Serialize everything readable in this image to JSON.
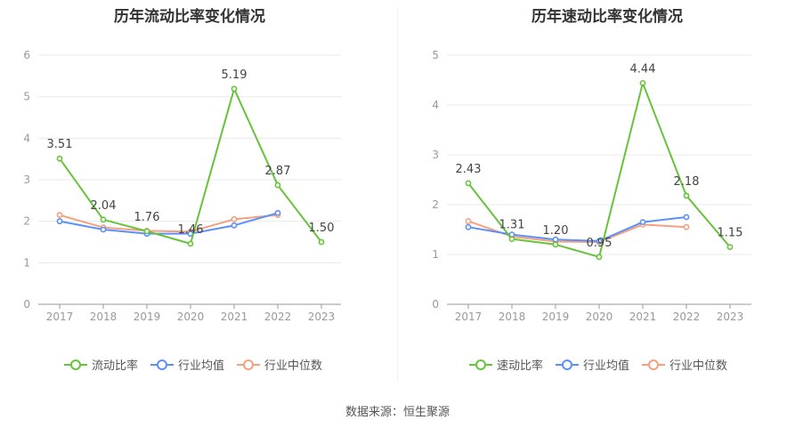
{
  "source": "数据来源：恒生聚源",
  "colors": {
    "main": "#66c33a",
    "avg": "#5b8ff9",
    "median": "#f4a07f",
    "grid": "#e9e9e9",
    "axis": "#999999",
    "tick": "#999999"
  },
  "chart_data": [
    {
      "type": "line",
      "title": "历年流动比率变化情况",
      "categories": [
        "2017",
        "2018",
        "2019",
        "2020",
        "2021",
        "2022",
        "2023"
      ],
      "ylim": [
        0,
        6
      ],
      "yticks": [
        "0",
        "1",
        "2",
        "3",
        "4",
        "5",
        "6"
      ],
      "legend_position": "bottom",
      "series": [
        {
          "name": "流动比率",
          "values": [
            3.51,
            2.04,
            1.76,
            1.46,
            5.19,
            2.87,
            1.5
          ],
          "labels": [
            "3.51",
            "2.04",
            "1.76",
            "1.46",
            "5.19",
            "2.87",
            "1.50"
          ]
        },
        {
          "name": "行业均值",
          "values": [
            2.0,
            1.8,
            1.7,
            1.7,
            1.9,
            2.2,
            null
          ]
        },
        {
          "name": "行业中位数",
          "values": [
            2.15,
            1.85,
            1.77,
            1.75,
            2.05,
            2.15,
            null
          ]
        }
      ]
    },
    {
      "type": "line",
      "title": "历年速动比率变化情况",
      "categories": [
        "2017",
        "2018",
        "2019",
        "2020",
        "2021",
        "2022",
        "2023"
      ],
      "ylim": [
        0,
        5
      ],
      "yticks": [
        "0",
        "1",
        "2",
        "3",
        "4",
        "5"
      ],
      "legend_position": "bottom",
      "series": [
        {
          "name": "速动比率",
          "values": [
            2.43,
            1.31,
            1.2,
            0.95,
            4.44,
            2.18,
            1.15
          ],
          "labels": [
            "2.43",
            "1.31",
            "1.20",
            "0.95",
            "4.44",
            "2.18",
            "1.15"
          ]
        },
        {
          "name": "行业均值",
          "values": [
            1.55,
            1.4,
            1.3,
            1.27,
            1.65,
            1.75,
            null
          ]
        },
        {
          "name": "行业中位数",
          "values": [
            1.67,
            1.36,
            1.26,
            1.25,
            1.6,
            1.55,
            null
          ]
        }
      ]
    }
  ]
}
